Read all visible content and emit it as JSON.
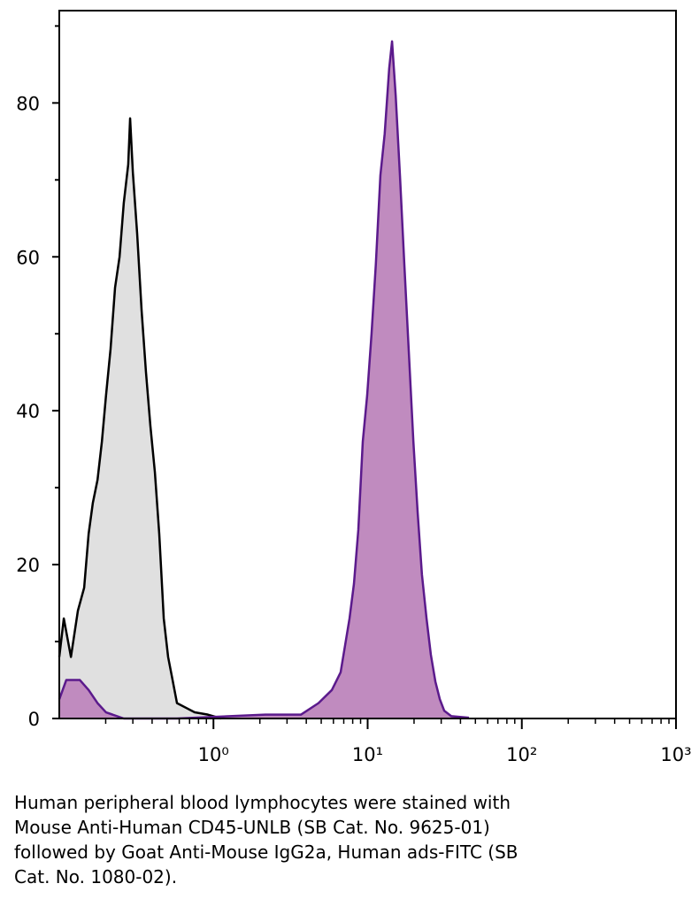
{
  "chart_data": {
    "type": "histogram-overlay",
    "xscale": "log",
    "xlim": [
      0.1,
      1000
    ],
    "ylim": [
      0,
      92
    ],
    "xticks": [
      {
        "value": 1,
        "label": "10⁰"
      },
      {
        "value": 10,
        "label": "10¹"
      },
      {
        "value": 100,
        "label": "10²"
      },
      {
        "value": 1000,
        "label": "10³"
      }
    ],
    "xminorticks": [
      0.2,
      0.3,
      0.4,
      0.5,
      0.6,
      0.7,
      0.8,
      0.9,
      2,
      3,
      4,
      5,
      6,
      7,
      8,
      9,
      20,
      30,
      40,
      50,
      60,
      70,
      80,
      90,
      200,
      300,
      400,
      500,
      600,
      700,
      800,
      900
    ],
    "yticks": [
      0,
      20,
      40,
      60,
      80
    ],
    "yminorticks": [
      10,
      30,
      50,
      70,
      90
    ],
    "series": [
      {
        "color": "#000000",
        "fill": "#e0e0e0",
        "x": [
          0.1,
          0.107,
          0.119,
          0.132,
          0.145,
          0.155,
          0.165,
          0.177,
          0.189,
          0.201,
          0.215,
          0.23,
          0.246,
          0.262,
          0.28,
          0.288,
          0.3,
          0.32,
          0.342,
          0.365,
          0.39,
          0.417,
          0.445,
          0.476,
          0.508,
          0.543,
          0.58,
          0.662,
          0.755,
          0.921,
          1.12
        ],
        "values": [
          8,
          13,
          8,
          14,
          17,
          24,
          28,
          31,
          36,
          42,
          48,
          56,
          60,
          67,
          72,
          78,
          71,
          63,
          53,
          45,
          38,
          32,
          24,
          13,
          8,
          5,
          2,
          1.4,
          0.8,
          0.5,
          0
        ]
      },
      {
        "color": "#5b1a8c",
        "fill": "#c08bbf",
        "x": [
          0.1,
          0.111,
          0.136,
          0.155,
          0.177,
          0.201,
          0.262,
          0.58,
          2.17,
          3.69,
          4.8,
          5.86,
          6.68,
          7.63,
          8.15,
          8.7,
          9.3,
          9.93,
          10.6,
          11.3,
          12.1,
          12.9,
          13.8,
          14.4,
          15.2,
          16.2,
          17.3,
          18.5,
          19.8,
          21.1,
          22.5,
          24.1,
          25.7,
          27.5,
          29.4,
          31.4,
          34.9,
          45.4
        ],
        "values": [
          2.5,
          5,
          5,
          3.7,
          2,
          0.8,
          0,
          0,
          0.5,
          0.5,
          2,
          3.7,
          6,
          13,
          17.5,
          24.5,
          36,
          42,
          50,
          59,
          70.6,
          76,
          84.5,
          88,
          81,
          70.6,
          59,
          47.6,
          36,
          26.8,
          18.7,
          13,
          8.3,
          4.8,
          2.5,
          1,
          0.3,
          0.1
        ]
      }
    ],
    "caption_lines": [
      "Human peripheral blood lymphocytes were stained with",
      "Mouse Anti-Human CD45-UNLB (SB Cat. No. 9625-01)",
      "followed by Goat Anti-Mouse IgG2a, Human ads-FITC (SB",
      "Cat. No. 1080-02)."
    ]
  }
}
